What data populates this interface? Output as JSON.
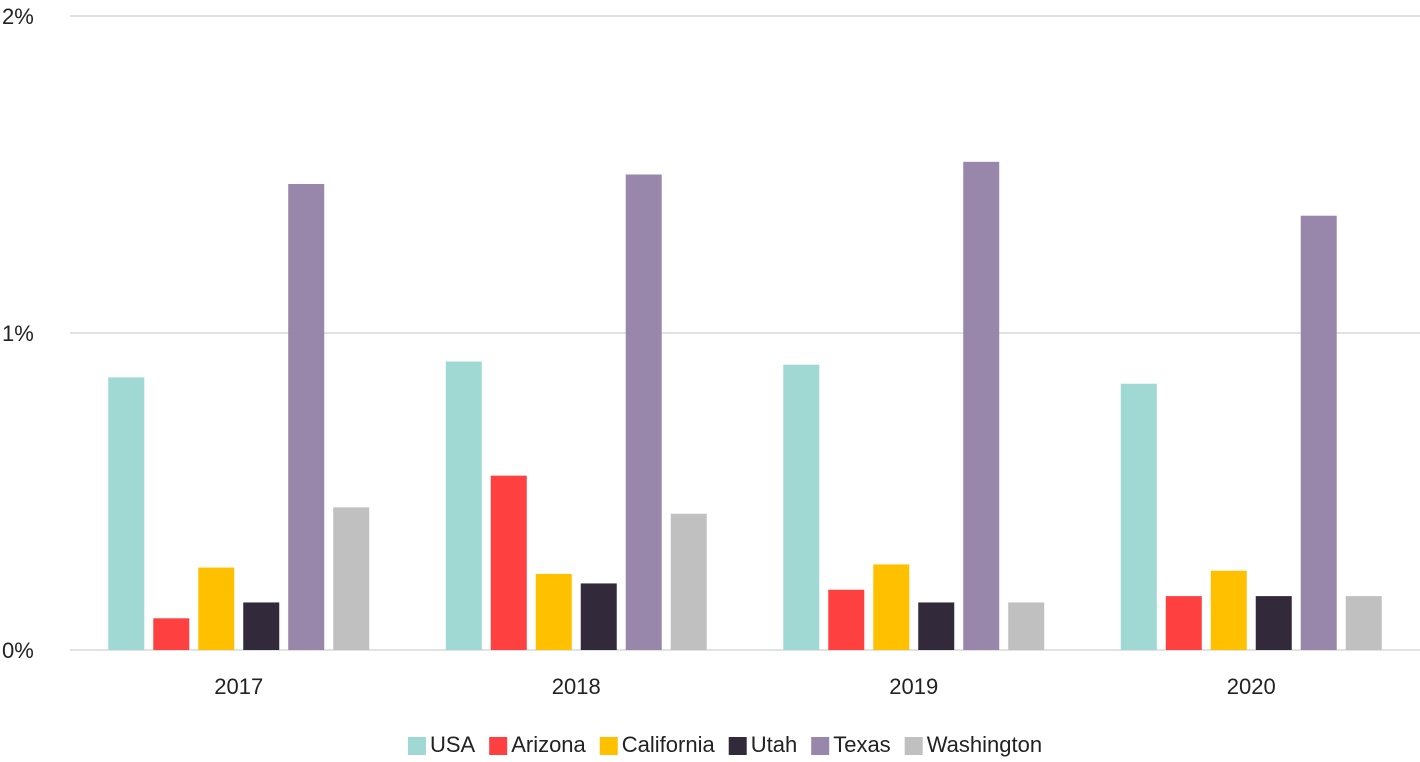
{
  "chart_data": {
    "type": "bar",
    "categories": [
      "2017",
      "2018",
      "2019",
      "2020"
    ],
    "series": [
      {
        "name": "USA",
        "color": "#a0d8d3",
        "values": [
          0.86,
          0.91,
          0.9,
          0.84
        ]
      },
      {
        "name": "Arizona",
        "color": "#ff4040",
        "values": [
          0.1,
          0.55,
          0.19,
          0.17
        ]
      },
      {
        "name": "California",
        "color": "#ffc000",
        "values": [
          0.26,
          0.24,
          0.27,
          0.25
        ]
      },
      {
        "name": "Utah",
        "color": "#322a3b",
        "values": [
          0.15,
          0.21,
          0.15,
          0.17
        ]
      },
      {
        "name": "Texas",
        "color": "#9887ab",
        "values": [
          1.47,
          1.5,
          1.54,
          1.37
        ]
      },
      {
        "name": "Washington",
        "color": "#c0c0c0",
        "values": [
          0.45,
          0.43,
          0.15,
          0.17
        ]
      }
    ],
    "ylim": [
      0,
      2
    ],
    "yticks": [
      {
        "value": 0,
        "label": "0%"
      },
      {
        "value": 1,
        "label": "1%"
      },
      {
        "value": 2,
        "label": "2%"
      }
    ],
    "grid": true,
    "legend": "bottom"
  }
}
